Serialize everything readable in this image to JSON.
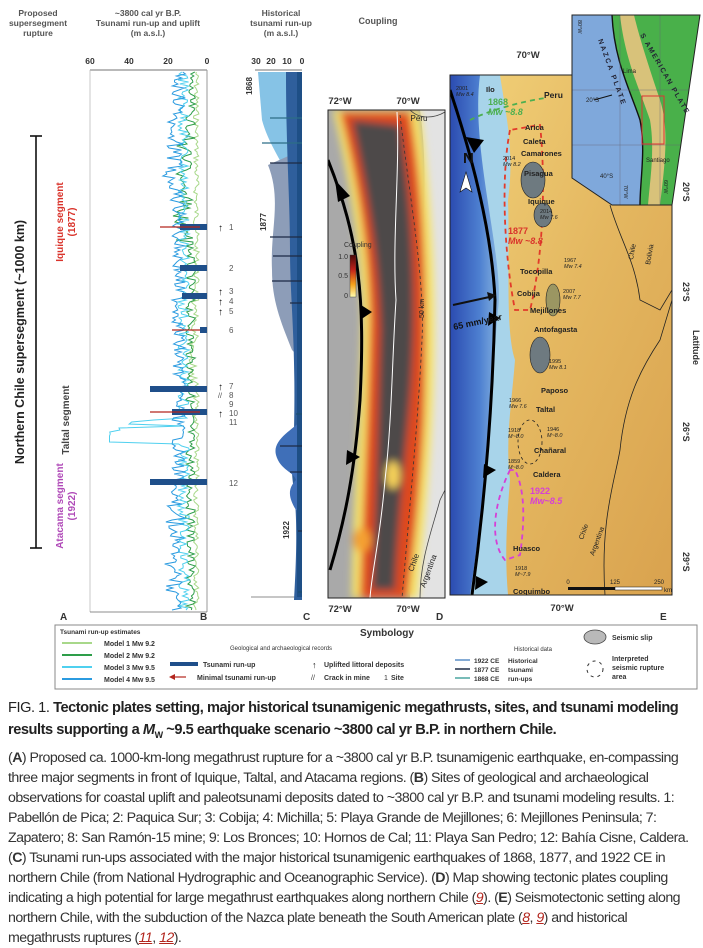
{
  "headers": {
    "a": [
      "Proposed",
      "supersegment",
      "rupture"
    ],
    "b": [
      "~3800 cal yr B.P.",
      "Tsunami run-up and uplift",
      "(m a.s.l.)"
    ],
    "c": [
      "Historical",
      "tsunami run-up",
      "(m a.s.l.)"
    ],
    "d": "Coupling"
  },
  "panel_letters": [
    "A",
    "B",
    "C",
    "D",
    "E"
  ],
  "panel_a": {
    "supersegment": "Northern Chile supersegment (~1000 km)",
    "iquique": [
      "Iquique segment",
      "(1877)"
    ],
    "taltal": "Taltal segment",
    "atacama": [
      "Atacama segment",
      "(1922)"
    ],
    "colors": {
      "iquique": "#d9332b",
      "atacama": "#b04ab8"
    }
  },
  "panel_b": {
    "axis_ticks": [
      "60",
      "40",
      "20",
      "0"
    ],
    "sites": [
      "1",
      "2",
      "3",
      "4",
      "5",
      "6",
      "7",
      "8",
      "9",
      "10",
      "11",
      "12"
    ],
    "model_colors": [
      "#a8d88a",
      "#2e9e4a",
      "#4fd0ef",
      "#2b9be0"
    ]
  },
  "panel_c": {
    "axis_ticks": [
      "30",
      "20",
      "10",
      "0"
    ],
    "events": [
      "1868",
      "1877",
      "1922"
    ]
  },
  "panel_d": {
    "lon_labels": [
      "72°W",
      "70°W"
    ],
    "country_labels": [
      "Peru",
      "Chile",
      "Argentina"
    ],
    "contour_label": "50 km",
    "coupling_title": "Coupling",
    "coupling_ticks": [
      "1.0",
      "0.5",
      "0"
    ]
  },
  "panel_e": {
    "lon_label": "70°W",
    "lat_labels": [
      "20°S",
      "23°S",
      "26°S",
      "29°S"
    ],
    "latitude_title": "Latitude",
    "north": "N",
    "convergence": "65 mm/year",
    "cities": [
      "Ilo",
      "Peru",
      "Arica",
      "Caleta",
      "Camarones",
      "Pisagua",
      "Iquique",
      "Tocopilla",
      "Cobija",
      "Mejillones",
      "Antofagasta",
      "Paposo",
      "Taltal",
      "Chañaral",
      "Caldera",
      "Huasco",
      "Coquimbo"
    ],
    "countries": [
      "Chile",
      "Bolivia",
      "Chile",
      "Argentina"
    ],
    "events": [
      {
        "year": "2001",
        "mag": "Mw 8.4"
      },
      {
        "year": "1868",
        "mag": "Mw ~8.8",
        "color": "#4caf50"
      },
      {
        "year": "2014",
        "mag": "Mw 8.2"
      },
      {
        "year": "2014",
        "mag": "Mw 7.6"
      },
      {
        "year": "1877",
        "mag": "Mw ~8.8",
        "color": "#d9332b"
      },
      {
        "year": "1967",
        "mag": "Mw 7.4"
      },
      {
        "year": "2007",
        "mag": "Mw 7.7"
      },
      {
        "year": "1995",
        "mag": "Mw 8.1"
      },
      {
        "year": "1966",
        "mag": "Mw 7.6"
      },
      {
        "year": "1918",
        "mag": "M~8.0"
      },
      {
        "year": "1946",
        "mag": "M~8.0"
      },
      {
        "year": "1859",
        "mag": "M~8.0"
      },
      {
        "year": "1922",
        "mag": "Mw~8.5",
        "color": "#d63fd6"
      },
      {
        "year": "1918",
        "mag": "M~7.9"
      }
    ],
    "scale_labels": [
      "0",
      "125",
      "250",
      "km"
    ],
    "inset": {
      "plates": [
        "NAZCA PLATE",
        "S AMERICAN PLATE"
      ],
      "places": [
        "Lima",
        "Santiago"
      ],
      "lat_labels": [
        "20°S",
        "40°S"
      ],
      "lon_labels": [
        "80°W",
        "70°W",
        "60°W"
      ]
    }
  },
  "symbology": {
    "title": "Symbology",
    "runup_title": "Tsunami run-up estimates",
    "models": [
      "Model 1 Mw 9.2",
      "Model 2 Mw 9.2",
      "Model 3 Mw 9.5",
      "Model 4 Mw 9.5"
    ],
    "geo_title": "Geological and archaeological records",
    "tsunami_runup": "Tsunami run-up",
    "minimal_runup": "Minimal tsunami run-up",
    "uplifted": "Uplifted littoral deposits",
    "crack": "Crack in mine",
    "site": "Site",
    "site_symbol": "1",
    "hist_title": "Historical data",
    "hist_years": [
      "1922 CE",
      "1877 CE",
      "1868 CE"
    ],
    "hist_labels": [
      "Historical",
      "tsunami",
      "run-ups"
    ],
    "hist_colors": [
      "#5b8fc7",
      "#1d2a44",
      "#4aa5a0"
    ],
    "seismic_slip": "Seismic slip",
    "interpreted": [
      "Interpreted",
      "seismic rupture",
      "area"
    ]
  },
  "caption": {
    "fig_label": "FIG. 1.",
    "title_pre": "Tectonic plates setting, major historical tsunamigenic megathrusts, sites, and tsunami modeling results supporting a",
    "title_m": "M",
    "title_sub": "W",
    "title_post": "~9.5 earthquake scenario ~3800 cal yr B.P. in northern Chile.",
    "A": "A",
    "a_text": "Proposed ca. 1000-km-long megathrust rupture for a ~3800 cal yr B.P. tsunamigenic earthquake, en-compassing three major segments in front of Iquique, Taltal, and Atacama regions.",
    "B": "B",
    "b_text": "Sites of geological and archaeological observations for coastal uplift and paleotsunami deposits dated to ~3800 cal yr B.P. and tsunami modeling results. 1: Pabellón de Pica; 2: Paquica Sur; 3: Cobija; 4: Michilla; 5: Playa Grande de Mejillones; 6: Mejillones Peninsula; 7: Zapatero; 8: San Ramón-15 mine; 9: Los Bronces; 10: Hornos de Cal; 11: Playa San Pedro; 12: Bahía Cisne, Caldera.",
    "C": "C",
    "c_text": "Tsunami run-ups associated with the major historical tsunamigenic earthquakes of 1868, 1877, and 1922 CE in northern Chile (from National Hydrographic and Oceanographic Service).",
    "D": "D",
    "d_text": "Map showing tectonic plates coupling indicating a high potential for large megathrust earthquakes along northern Chile (",
    "ref9": "9",
    "d_end": ").",
    "E": "E",
    "e_text": "Seismotectonic setting along northern Chile, with the subduction of the Nazca plate beneath the South American plate (",
    "ref8": "8",
    "ref9b": "9",
    "e_mid": ") and historical megathrusts ruptures (",
    "ref11": "11",
    "ref12": "12",
    "e_end": ")."
  }
}
